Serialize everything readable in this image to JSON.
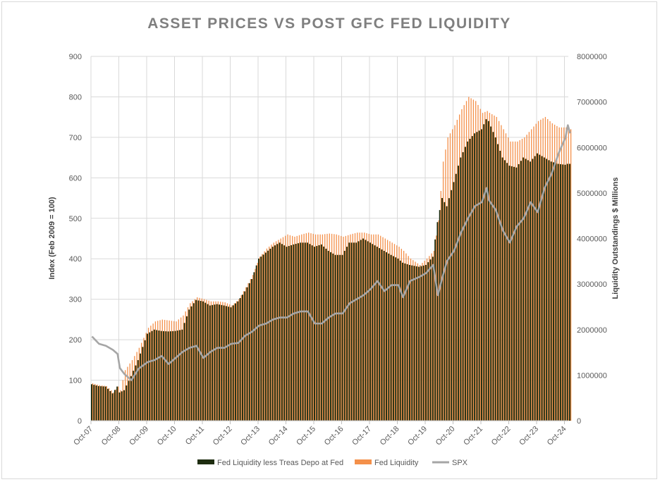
{
  "chart_data": {
    "type": "bar+line",
    "title": "ASSET PRICES VS POST GFC FED LIQUIDITY",
    "ylabel_left": "Index (Feb 2009 = 100)",
    "ylabel_right": "Liquidity Outstandings $ Millions",
    "ylim_left": [
      0,
      900
    ],
    "ylim_right": [
      0,
      8000000
    ],
    "yticks_left": [
      "0",
      "100",
      "200",
      "300",
      "400",
      "500",
      "600",
      "700",
      "800",
      "900"
    ],
    "yticks_right": [
      "0",
      "1000000",
      "2000000",
      "3000000",
      "4000000",
      "5000000",
      "6000000",
      "7000000",
      "8000000"
    ],
    "xticks": [
      "Oct-07",
      "Oct-08",
      "Oct-09",
      "Oct-10",
      "Oct-11",
      "Oct-12",
      "Oct-13",
      "Oct-14",
      "Oct-15",
      "Oct-16",
      "Oct-17",
      "Oct-18",
      "Oct-19",
      "Oct-20",
      "Oct-21",
      "Oct-22",
      "Oct-23",
      "Oct-24"
    ],
    "grid": true,
    "legend_position": "bottom",
    "colors": {
      "fed_less_tga": "#1e2d10",
      "fed_liquidity": "#f4904a",
      "spx": "#a6a6a6",
      "grid": "#d9d9d9"
    },
    "x": [
      "2007-10",
      "2008-01",
      "2008-04",
      "2008-07",
      "2008-09",
      "2008-10",
      "2008-12",
      "2009-03",
      "2009-06",
      "2009-10",
      "2010-01",
      "2010-04",
      "2010-07",
      "2010-10",
      "2011-01",
      "2011-04",
      "2011-07",
      "2011-10",
      "2012-01",
      "2012-04",
      "2012-07",
      "2012-10",
      "2013-01",
      "2013-04",
      "2013-07",
      "2013-10",
      "2014-01",
      "2014-04",
      "2014-07",
      "2014-10",
      "2015-01",
      "2015-04",
      "2015-07",
      "2015-10",
      "2016-01",
      "2016-04",
      "2016-07",
      "2016-10",
      "2017-01",
      "2017-04",
      "2017-07",
      "2017-10",
      "2018-01",
      "2018-04",
      "2018-07",
      "2018-10",
      "2018-12",
      "2019-03",
      "2019-07",
      "2019-10",
      "2020-01",
      "2020-03",
      "2020-05",
      "2020-07",
      "2020-10",
      "2021-01",
      "2021-04",
      "2021-07",
      "2021-10",
      "2021-12",
      "2022-01",
      "2022-04",
      "2022-07",
      "2022-10",
      "2023-01",
      "2023-04",
      "2023-07",
      "2023-10",
      "2024-01",
      "2024-04",
      "2024-07",
      "2024-10",
      "2024-11",
      "2024-12"
    ],
    "series": [
      {
        "name": "Fed Liquidity less Treas Depo at Fed",
        "axis": "right",
        "type": "bar",
        "values": [
          800000,
          760000,
          750000,
          600000,
          750000,
          620000,
          670000,
          980000,
          1330000,
          1910000,
          2000000,
          1970000,
          1960000,
          1970000,
          2000000,
          2440000,
          2650000,
          2620000,
          2530000,
          2560000,
          2530000,
          2490000,
          2620000,
          2840000,
          3110000,
          3560000,
          3690000,
          3820000,
          3910000,
          3820000,
          3870000,
          3910000,
          3910000,
          3820000,
          3870000,
          3730000,
          3640000,
          3640000,
          3910000,
          3910000,
          4000000,
          3910000,
          3820000,
          3730000,
          3640000,
          3560000,
          3470000,
          3420000,
          3380000,
          3420000,
          3600000,
          4360000,
          4890000,
          4710000,
          5240000,
          5780000,
          6130000,
          6310000,
          6400000,
          6620000,
          6580000,
          6220000,
          5780000,
          5600000,
          5560000,
          5780000,
          5690000,
          5870000,
          5780000,
          5690000,
          5640000,
          5620000,
          5640000,
          5640000
        ]
      },
      {
        "name": "Fed Liquidity",
        "axis": "right",
        "type": "bar",
        "values": [
          820000,
          780000,
          760000,
          620000,
          750000,
          670000,
          1110000,
          1330000,
          1600000,
          2040000,
          2180000,
          2220000,
          2200000,
          2180000,
          2310000,
          2580000,
          2710000,
          2670000,
          2620000,
          2620000,
          2600000,
          2530000,
          2670000,
          2930000,
          3200000,
          3600000,
          3780000,
          3910000,
          4000000,
          4090000,
          4040000,
          4090000,
          4130000,
          4090000,
          4090000,
          4110000,
          4090000,
          4040000,
          4090000,
          4130000,
          4130000,
          4090000,
          4090000,
          4000000,
          3910000,
          3820000,
          3730000,
          3560000,
          3420000,
          3560000,
          3730000,
          4400000,
          5690000,
          6220000,
          6490000,
          6840000,
          7110000,
          7020000,
          6760000,
          6800000,
          6760000,
          6670000,
          6400000,
          6130000,
          6130000,
          6220000,
          6400000,
          6580000,
          6670000,
          6530000,
          6440000,
          6440000,
          6440000,
          6400000
        ]
      },
      {
        "name": "SPX",
        "axis": "left",
        "type": "line",
        "values": [
          208,
          190,
          185,
          175,
          165,
          130,
          115,
          100,
          128,
          145,
          150,
          160,
          140,
          155,
          170,
          180,
          185,
          155,
          170,
          180,
          180,
          190,
          192,
          210,
          220,
          235,
          240,
          250,
          255,
          255,
          265,
          270,
          270,
          240,
          240,
          255,
          265,
          265,
          290,
          300,
          310,
          325,
          345,
          320,
          335,
          335,
          305,
          345,
          355,
          365,
          385,
          310,
          355,
          395,
          420,
          465,
          500,
          530,
          540,
          575,
          545,
          520,
          470,
          440,
          480,
          500,
          540,
          515,
          575,
          610,
          660,
          700,
          730,
          710
        ]
      }
    ]
  }
}
